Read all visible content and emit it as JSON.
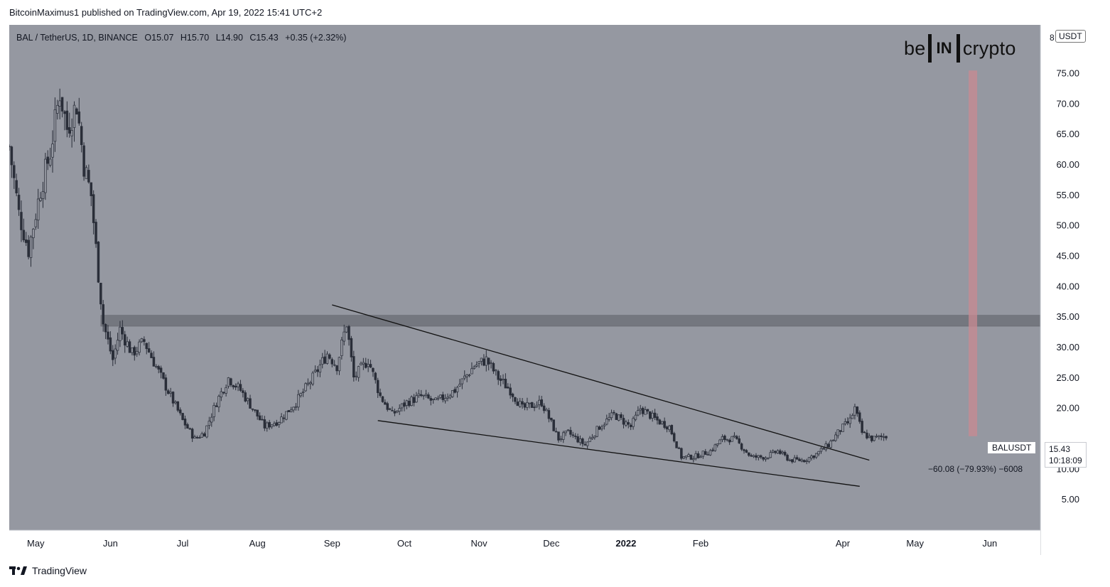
{
  "header": {
    "publisher": "BitcoinMaximus1 published on TradingView.com, Apr 19, 2022 15:41 UTC+2"
  },
  "symbol": {
    "name": "BAL / TetherUS, 1D, BINANCE",
    "open": "O15.07",
    "high": "H15.70",
    "low": "L14.90",
    "close": "C15.43",
    "change": "+0.35 (+2.32%)"
  },
  "logo": {
    "left": "be",
    "box": "IN",
    "right": "crypto"
  },
  "price_scale": {
    "unit": "USDT",
    "edge_label": "8"
  },
  "last_price": {
    "ticker": "BALUSDT",
    "price": "15.43",
    "countdown": "10:18:09"
  },
  "measurement": {
    "label": "−60.08 (−79.93%) −6008"
  },
  "footer": {
    "brand": "TradingView"
  },
  "colors": {
    "plot_bg": "#9598a1",
    "candle": "#2a2e39",
    "resistance_zone": "#6a6d74",
    "measure_bar": "#c98a92"
  },
  "chart_data": {
    "type": "candlestick",
    "title": "BAL / TetherUS, 1D, BINANCE",
    "xlabel": "",
    "ylabel": "",
    "x_tick_labels": [
      "May",
      "Jun",
      "Jul",
      "Aug",
      "Sep",
      "Oct",
      "Nov",
      "Dec",
      "2022",
      "Feb",
      "Apr",
      "May",
      "Jun"
    ],
    "x_tick_dates": [
      "2021-05-01",
      "2021-06-01",
      "2021-07-01",
      "2021-08-01",
      "2021-09-01",
      "2021-10-01",
      "2021-11-01",
      "2021-12-01",
      "2022-01-01",
      "2022-02-01",
      "2022-04-01",
      "2022-05-01",
      "2022-06-01"
    ],
    "y_tick_labels": [
      "75.00",
      "70.00",
      "65.00",
      "60.00",
      "55.00",
      "50.00",
      "45.00",
      "40.00",
      "35.00",
      "30.00",
      "25.00",
      "20.00",
      "10.00",
      "5.00"
    ],
    "y_ticks": [
      75,
      70,
      65,
      60,
      55,
      50,
      45,
      40,
      35,
      30,
      25,
      20,
      10,
      5
    ],
    "ylim": [
      0,
      83
    ],
    "xlim": [
      "2021-04-20",
      "2022-06-22"
    ],
    "grid": false,
    "series": [
      {
        "price_path": [
          [
            "2021-04-20",
            63
          ],
          [
            "2021-04-24",
            52
          ],
          [
            "2021-04-28",
            46
          ],
          [
            "2021-05-03",
            56
          ],
          [
            "2021-05-07",
            62
          ],
          [
            "2021-05-11",
            72
          ],
          [
            "2021-05-14",
            66
          ],
          [
            "2021-05-18",
            70
          ],
          [
            "2021-05-21",
            60
          ],
          [
            "2021-05-24",
            55
          ],
          [
            "2021-05-27",
            42
          ],
          [
            "2021-05-29",
            34
          ],
          [
            "2021-06-02",
            28
          ],
          [
            "2021-06-05",
            33
          ],
          [
            "2021-06-10",
            29
          ],
          [
            "2021-06-15",
            31
          ],
          [
            "2021-06-21",
            26
          ],
          [
            "2021-06-26",
            22
          ],
          [
            "2021-07-01",
            18
          ],
          [
            "2021-07-06",
            15
          ],
          [
            "2021-07-10",
            16
          ],
          [
            "2021-07-15",
            21
          ],
          [
            "2021-07-20",
            25
          ],
          [
            "2021-07-25",
            23
          ],
          [
            "2021-07-30",
            20
          ],
          [
            "2021-08-04",
            17
          ],
          [
            "2021-08-10",
            18
          ],
          [
            "2021-08-17",
            21
          ],
          [
            "2021-08-24",
            25
          ],
          [
            "2021-08-30",
            29
          ],
          [
            "2021-09-03",
            27
          ],
          [
            "2021-09-07",
            34
          ],
          [
            "2021-09-10",
            25
          ],
          [
            "2021-09-16",
            28
          ],
          [
            "2021-09-21",
            22
          ],
          [
            "2021-09-26",
            19
          ],
          [
            "2021-10-02",
            21
          ],
          [
            "2021-10-08",
            22
          ],
          [
            "2021-10-14",
            21
          ],
          [
            "2021-10-22",
            23
          ],
          [
            "2021-10-30",
            27
          ],
          [
            "2021-11-04",
            28
          ],
          [
            "2021-11-09",
            25
          ],
          [
            "2021-11-14",
            23
          ],
          [
            "2021-11-19",
            20
          ],
          [
            "2021-11-27",
            21
          ],
          [
            "2021-12-04",
            15
          ],
          [
            "2021-12-08",
            16
          ],
          [
            "2021-12-15",
            14
          ],
          [
            "2021-12-21",
            17
          ],
          [
            "2021-12-27",
            19
          ],
          [
            "2022-01-03",
            17
          ],
          [
            "2022-01-07",
            20
          ],
          [
            "2022-01-14",
            18
          ],
          [
            "2022-01-19",
            17
          ],
          [
            "2022-01-24",
            12
          ],
          [
            "2022-01-29",
            12
          ],
          [
            "2022-02-05",
            13
          ],
          [
            "2022-02-10",
            15
          ],
          [
            "2022-02-15",
            15
          ],
          [
            "2022-02-22",
            12
          ],
          [
            "2022-02-28",
            12
          ],
          [
            "2022-03-05",
            13
          ],
          [
            "2022-03-10",
            11.5
          ],
          [
            "2022-03-16",
            11.5
          ],
          [
            "2022-03-21",
            12.5
          ],
          [
            "2022-03-26",
            14
          ],
          [
            "2022-03-31",
            16.5
          ],
          [
            "2022-04-04",
            18
          ],
          [
            "2022-04-06",
            20
          ],
          [
            "2022-04-09",
            16
          ],
          [
            "2022-04-13",
            15
          ],
          [
            "2022-04-19",
            15.43
          ]
        ]
      }
    ],
    "annotations": {
      "resistance_zone": [
        33.5,
        35.3
      ],
      "upper_trendline": [
        [
          "2021-09-01",
          37
        ],
        [
          "2022-04-12",
          11.5
        ]
      ],
      "lower_trendline": [
        [
          "2021-09-20",
          18
        ],
        [
          "2022-04-08",
          7.2
        ]
      ],
      "drawdown_measure": {
        "from_date": "2022-05-25",
        "from": 75.5,
        "to": 15.43,
        "label": "−60.08 (−79.93%) −6008"
      }
    }
  }
}
